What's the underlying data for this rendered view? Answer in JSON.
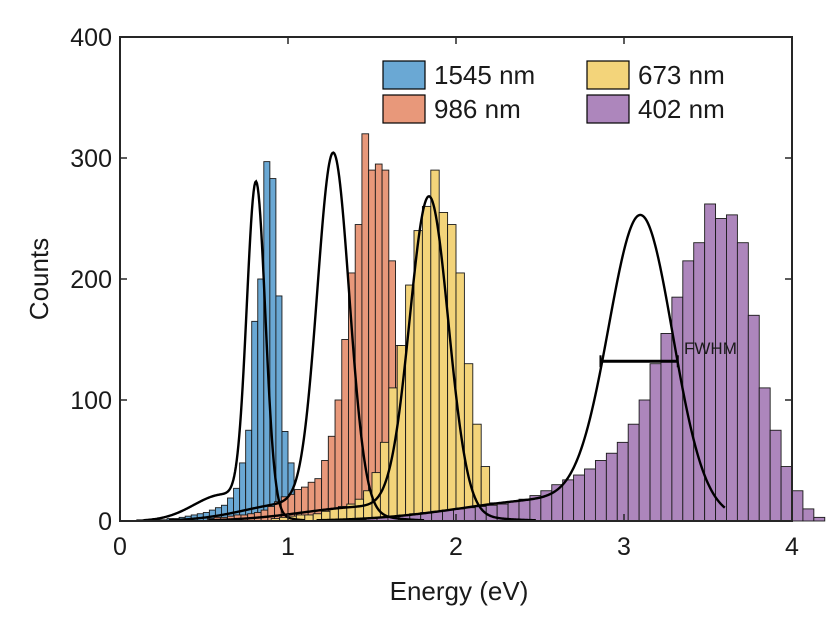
{
  "chart_data": {
    "type": "histogram",
    "title": "",
    "xlabel": "Energy (eV)",
    "ylabel": "Counts",
    "xlim": [
      0,
      4
    ],
    "ylim": [
      0,
      400
    ],
    "xticks": [
      0,
      1,
      2,
      3,
      4
    ],
    "yticks": [
      0,
      100,
      200,
      300,
      400
    ],
    "grid": false,
    "legend_position": "top-right",
    "annotation": "FWHM",
    "fwhm": {
      "series": "402 nm",
      "x_start": 2.86,
      "x_end": 3.32,
      "y": 132
    },
    "series": [
      {
        "name": "1545 nm",
        "color": "#6aa8d4",
        "bin_width": 0.036,
        "bin_start": 0.1,
        "counts": [
          1,
          1,
          1,
          1,
          1,
          2,
          2,
          3,
          4,
          5,
          6,
          7,
          9,
          11,
          13,
          19,
          27,
          48,
          75,
          165,
          200,
          297,
          283,
          186,
          74,
          48,
          10,
          0
        ],
        "fit": {
          "amplitude": 268,
          "mean": 0.81,
          "sigma": 0.055,
          "tail_amplitude": 22,
          "tail_mean": 0.62,
          "tail_sigma": 0.18
        }
      },
      {
        "name": "986 nm",
        "color": "#e8987a",
        "bin_width": 0.04,
        "bin_start": 0.52,
        "counts": [
          2,
          3,
          3,
          4,
          5,
          5,
          6,
          7,
          9,
          12,
          16,
          20,
          22,
          26,
          28,
          32,
          35,
          50,
          70,
          100,
          150,
          205,
          245,
          320,
          290,
          295,
          290,
          215,
          145,
          115,
          45,
          20,
          5,
          2
        ],
        "fit": {
          "amplitude": 293,
          "mean": 1.27,
          "sigma": 0.095,
          "tail_amplitude": 15,
          "tail_mean": 1.05,
          "tail_sigma": 0.3
        }
      },
      {
        "name": "673 nm",
        "color": "#f3d47a",
        "bin_width": 0.05,
        "bin_start": 0.9,
        "counts": [
          2,
          3,
          4,
          5,
          5,
          6,
          8,
          10,
          12,
          14,
          18,
          25,
          40,
          65,
          110,
          145,
          195,
          240,
          260,
          290,
          255,
          245,
          205,
          130,
          80,
          45,
          15
        ],
        "fit": {
          "amplitude": 260,
          "mean": 1.84,
          "sigma": 0.115,
          "tail_amplitude": 12,
          "tail_mean": 1.5,
          "tail_sigma": 0.4
        }
      },
      {
        "name": "402 nm",
        "color": "#ad86bc",
        "bin_width": 0.065,
        "bin_start": 1.4,
        "counts": [
          1,
          2,
          3,
          4,
          5,
          6,
          7,
          8,
          9,
          10,
          11,
          12,
          13,
          14,
          16,
          18,
          21,
          25,
          30,
          34,
          38,
          43,
          50,
          56,
          65,
          80,
          100,
          130,
          155,
          185,
          215,
          230,
          262,
          250,
          253,
          230,
          170,
          110,
          75,
          45,
          25,
          10,
          3
        ],
        "fit": {
          "amplitude": 241,
          "mean": 3.1,
          "sigma": 0.19,
          "tail_amplitude": 18,
          "tail_mean": 2.6,
          "tail_sigma": 0.55
        }
      }
    ]
  }
}
